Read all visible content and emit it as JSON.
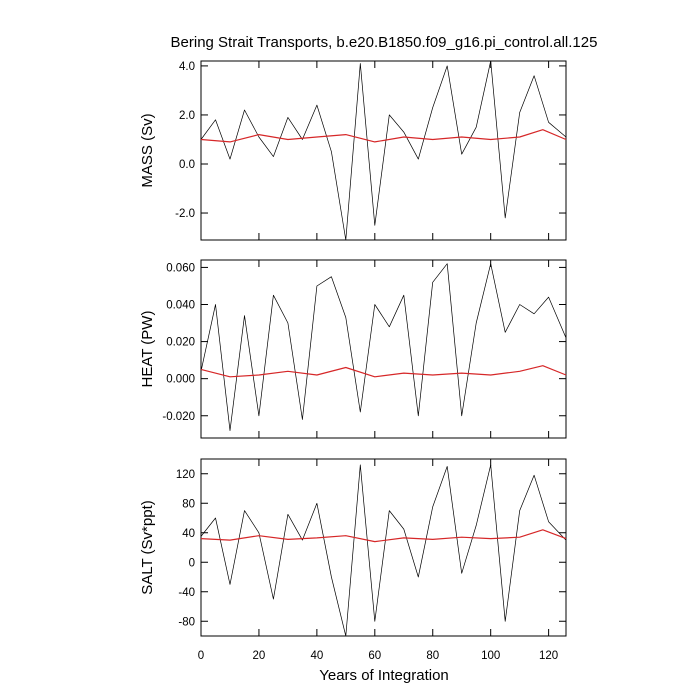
{
  "title": "Bering Strait Transports, b.e20.B1850.f09_g16.pi_control.all.125",
  "xlabel": "Years of Integration",
  "xticks": [
    "0",
    "20",
    "40",
    "60",
    "80",
    "100",
    "120"
  ],
  "colors": {
    "raw": "#000000",
    "smooth": "#d62728",
    "axis": "#000000"
  },
  "chart_data": [
    {
      "type": "line",
      "id": "mass",
      "ylabel": "MASS (Sv)",
      "xlim": [
        0,
        126
      ],
      "ylim": [
        -3.1,
        4.2
      ],
      "yticks": [
        -2.0,
        0.0,
        2.0,
        4.0
      ],
      "ytick_labels": [
        "-2.0",
        "0.0",
        "2.0",
        "4.0"
      ],
      "series": [
        {
          "role": "monthly",
          "x": [
            0,
            5,
            10,
            15,
            20,
            25,
            30,
            35,
            40,
            45,
            50,
            55,
            60,
            65,
            70,
            75,
            80,
            85,
            90,
            95,
            100,
            105,
            110,
            115,
            120,
            126
          ],
          "y": [
            1.0,
            1.8,
            0.2,
            2.2,
            1.1,
            0.3,
            1.9,
            1.0,
            2.4,
            0.5,
            -3.1,
            4.1,
            -2.5,
            2.0,
            1.3,
            0.2,
            2.3,
            4.0,
            0.4,
            1.5,
            4.2,
            -2.2,
            2.1,
            3.6,
            1.7,
            1.1
          ]
        },
        {
          "role": "smoothed",
          "x": [
            0,
            10,
            20,
            30,
            40,
            50,
            60,
            70,
            80,
            90,
            100,
            110,
            118,
            126
          ],
          "y": [
            1.0,
            0.9,
            1.2,
            1.0,
            1.1,
            1.2,
            0.9,
            1.1,
            1.0,
            1.1,
            1.0,
            1.1,
            1.4,
            1.0
          ]
        }
      ]
    },
    {
      "type": "line",
      "id": "heat",
      "ylabel": "HEAT (PW)",
      "xlim": [
        0,
        126
      ],
      "ylim": [
        -0.032,
        0.064
      ],
      "yticks": [
        -0.02,
        0.0,
        0.02,
        0.04,
        0.06
      ],
      "ytick_labels": [
        "-0.020",
        "0.000",
        "0.020",
        "0.040",
        "0.060"
      ],
      "series": [
        {
          "role": "monthly",
          "x": [
            0,
            5,
            10,
            15,
            20,
            25,
            30,
            35,
            40,
            45,
            50,
            55,
            60,
            65,
            70,
            75,
            80,
            85,
            90,
            95,
            100,
            105,
            110,
            115,
            120,
            126
          ],
          "y": [
            0.004,
            0.04,
            -0.028,
            0.034,
            -0.02,
            0.045,
            0.03,
            -0.022,
            0.05,
            0.055,
            0.033,
            -0.018,
            0.04,
            0.028,
            0.045,
            -0.02,
            0.052,
            0.062,
            -0.02,
            0.03,
            0.062,
            0.025,
            0.04,
            0.035,
            0.044,
            0.022
          ]
        },
        {
          "role": "smoothed",
          "x": [
            0,
            10,
            20,
            30,
            40,
            50,
            60,
            70,
            80,
            90,
            100,
            110,
            118,
            126
          ],
          "y": [
            0.005,
            0.001,
            0.002,
            0.004,
            0.002,
            0.006,
            0.001,
            0.003,
            0.002,
            0.003,
            0.002,
            0.004,
            0.007,
            0.002
          ]
        }
      ]
    },
    {
      "type": "line",
      "id": "salt",
      "ylabel": "SALT (Sv*ppt)",
      "xlim": [
        0,
        126
      ],
      "ylim": [
        -100,
        140
      ],
      "yticks": [
        -80,
        -40,
        0,
        40,
        80,
        120
      ],
      "ytick_labels": [
        "-80",
        "-40",
        "0",
        "40",
        "80",
        "120"
      ],
      "series": [
        {
          "role": "monthly",
          "x": [
            0,
            5,
            10,
            15,
            20,
            25,
            30,
            35,
            40,
            45,
            50,
            55,
            60,
            65,
            70,
            75,
            80,
            85,
            90,
            95,
            100,
            105,
            110,
            115,
            120,
            126
          ],
          "y": [
            35,
            60,
            -30,
            70,
            40,
            -50,
            65,
            30,
            80,
            -20,
            -100,
            132,
            -80,
            70,
            45,
            -20,
            75,
            130,
            -15,
            50,
            132,
            -80,
            70,
            118,
            55,
            30
          ]
        },
        {
          "role": "smoothed",
          "x": [
            0,
            10,
            20,
            30,
            40,
            50,
            60,
            70,
            80,
            90,
            100,
            110,
            118,
            126
          ],
          "y": [
            32,
            30,
            36,
            31,
            33,
            36,
            28,
            33,
            31,
            34,
            32,
            34,
            44,
            32
          ]
        }
      ]
    }
  ]
}
